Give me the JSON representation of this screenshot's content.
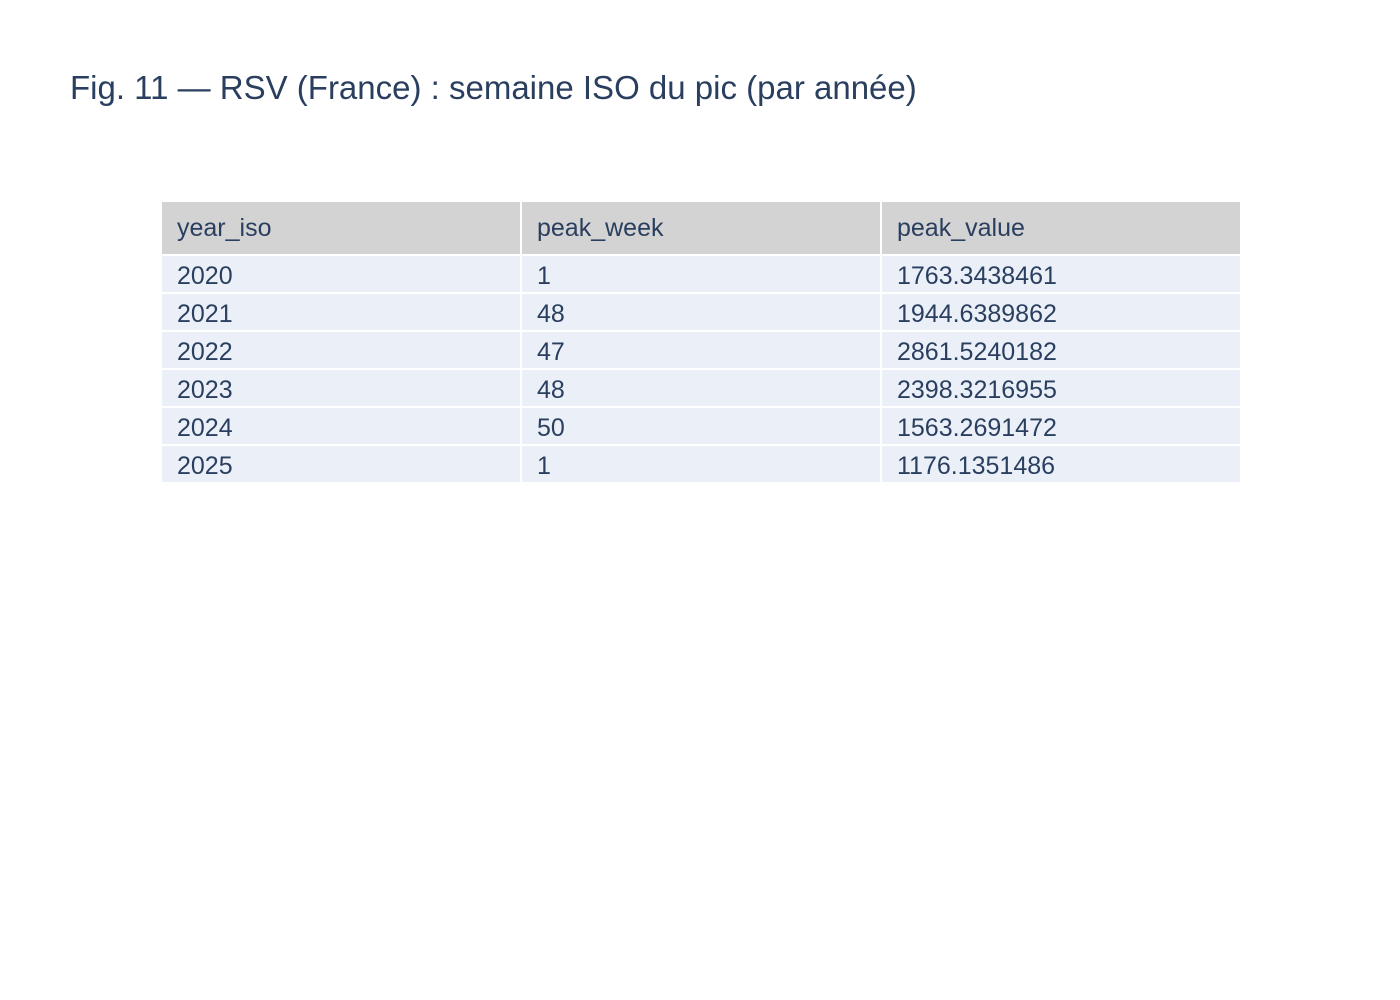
{
  "chart_data": {
    "type": "table",
    "title": "Fig. 11 — RSV (France) : semaine ISO du pic (par année)",
    "columns": [
      "year_iso",
      "peak_week",
      "peak_value"
    ],
    "rows": [
      [
        "2020",
        "1",
        "1763.3438461"
      ],
      [
        "2021",
        "48",
        "1944.6389862"
      ],
      [
        "2022",
        "47",
        "2861.5240182"
      ],
      [
        "2023",
        "48",
        "2398.3216955"
      ],
      [
        "2024",
        "50",
        "1563.2691472"
      ],
      [
        "2025",
        "1",
        "1176.1351486"
      ]
    ],
    "colors": {
      "header_fill": "#d3d3d3",
      "cell_fill": "#ebf0f8",
      "text": "#2a3f5f",
      "border": "#ffffff"
    }
  }
}
